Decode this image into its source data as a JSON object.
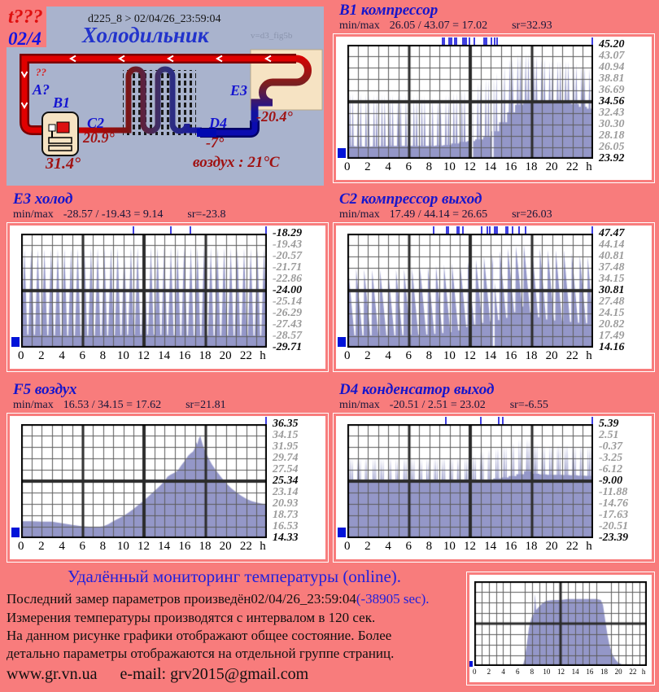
{
  "page_background": "#f87c7c",
  "colors": {
    "panel": "#a9b3cd",
    "chart_fill": "#9497c8",
    "event_tick": "#4040e0",
    "series_marker": "#0013d9",
    "pipe_hot": "#dd0000",
    "pipe_cold": "#1111aa",
    "unit_box": "#f6e3c3"
  },
  "diagram": {
    "corner_note": "t???",
    "page_note": "02/4",
    "header": "d225_8  >  02/04/26_23:59:04",
    "title": "Холодильник",
    "version": "v=d3_fig5b",
    "q1": "??",
    "q2": "A?",
    "b1": "B1",
    "b1_temp": "31.4°",
    "c2": "C2",
    "c2_temp": "20.9°",
    "d4": "D4",
    "d4_temp": "-7°",
    "e3": "E3",
    "e3_temp": "-20.4°",
    "air": "воздух : 21°C"
  },
  "chart_data": [
    {
      "id": "b1-compressor",
      "type": "area",
      "title": "B1 компрессор",
      "minmax_label": "min/max",
      "minmax": "26.05 / 43.07 = 17.02",
      "sr": "sr=32.93",
      "ymin": 23.92,
      "ymax": 45.2,
      "y_ticks": [
        "45.20",
        "43.07",
        "40.94",
        "38.81",
        "36.69",
        "34.56",
        "32.43",
        "30.30",
        "28.18",
        "26.05",
        "23.92"
      ],
      "y_bold": [
        0,
        5,
        10
      ],
      "x_ticks": [
        "0",
        "2",
        "4",
        "6",
        "8",
        "10",
        "12",
        "14",
        "16",
        "18",
        "20",
        "22"
      ],
      "x_unit": "h",
      "waveform": {
        "kind": "spikes",
        "period": 0.78,
        "spikes": [
          [
            -0.17,
            0.12
          ],
          [
            0.17,
            0.12
          ]
        ]
      },
      "envelope": [
        [
          0,
          26.3,
          36.2
        ],
        [
          2,
          26.2,
          36.0
        ],
        [
          4,
          26.3,
          35.8
        ],
        [
          6,
          26.3,
          35.9
        ],
        [
          8,
          26.3,
          35.5
        ],
        [
          9,
          26.4,
          35.2
        ],
        [
          10,
          26.5,
          36.0
        ],
        [
          11,
          27.0,
          36.6
        ],
        [
          12,
          27.2,
          37.4
        ],
        [
          13,
          27.6,
          38.2
        ],
        [
          14,
          28.2,
          39.2
        ],
        [
          15,
          30.2,
          41.0
        ],
        [
          16,
          32.6,
          42.6
        ],
        [
          17,
          34.4,
          43.9
        ],
        [
          18,
          34.6,
          43.4
        ],
        [
          19,
          34.5,
          42.6
        ],
        [
          20,
          34.4,
          42.0
        ],
        [
          21,
          34.4,
          42.3
        ],
        [
          22,
          34.3,
          41.8
        ],
        [
          23,
          33.6,
          41.3
        ],
        [
          24,
          33.2,
          40.8
        ]
      ],
      "events": [
        9.3,
        9.45,
        9.9,
        10.05,
        10.2,
        10.5,
        10.65,
        11.3,
        11.45,
        11.6,
        11.95,
        12.4,
        14.05,
        14.35,
        14.65,
        23.95
      ],
      "events_wide": [
        13.4
      ],
      "gaps": [
        12.2,
        14.2
      ]
    },
    {
      "id": "e3-cold",
      "type": "area",
      "title": "E3 холод",
      "minmax_label": "min/max",
      "minmax": "-28.57 / -19.43 = 9.14",
      "sr": "sr=-23.8",
      "ymin": -29.71,
      "ymax": -18.29,
      "y_ticks": [
        "-18.29",
        "-19.43",
        "-20.57",
        "-21.71",
        "-22.86",
        "-24.00",
        "-25.14",
        "-26.29",
        "-27.43",
        "-28.57",
        "-29.71"
      ],
      "y_bold": [
        0,
        5,
        10
      ],
      "x_ticks": [
        "0",
        "2",
        "4",
        "6",
        "8",
        "10",
        "12",
        "14",
        "16",
        "18",
        "20",
        "22"
      ],
      "x_unit": "h",
      "waveform": {
        "kind": "spikes",
        "period": 0.65,
        "spikes": [
          [
            0,
            0.42
          ]
        ]
      },
      "envelope": [
        [
          0,
          -28.4,
          -19.9
        ],
        [
          4,
          -28.5,
          -19.8
        ],
        [
          8,
          -28.5,
          -19.7
        ],
        [
          12,
          -28.4,
          -19.6
        ],
        [
          16,
          -28.5,
          -19.6
        ],
        [
          20,
          -28.5,
          -19.7
        ],
        [
          24,
          -28.5,
          -19.8
        ]
      ],
      "events": [
        11.0,
        14.6,
        16.5,
        23.95
      ],
      "events_wide": [],
      "gaps": []
    },
    {
      "id": "c2-compressor-out",
      "type": "area",
      "title": "C2 компрессор выход",
      "minmax_label": "min/max",
      "minmax": "17.49 / 44.14 = 26.65",
      "sr": "sr=26.03",
      "ymin": 14.16,
      "ymax": 47.47,
      "y_ticks": [
        "47.47",
        "44.14",
        "40.81",
        "37.48",
        "34.15",
        "30.81",
        "27.48",
        "24.15",
        "20.82",
        "17.49",
        "14.16"
      ],
      "y_bold": [
        0,
        5,
        10
      ],
      "x_ticks": [
        "0",
        "2",
        "4",
        "6",
        "8",
        "10",
        "12",
        "14",
        "16",
        "18",
        "20",
        "22"
      ],
      "x_unit": "h",
      "waveform": {
        "kind": "saw",
        "period": 0.78
      },
      "envelope": [
        [
          0,
          17.7,
          37.4
        ],
        [
          2,
          17.7,
          37.0
        ],
        [
          4,
          17.7,
          36.8
        ],
        [
          6,
          17.8,
          37.2
        ],
        [
          8,
          18.0,
          38.0
        ],
        [
          10,
          18.6,
          38.6
        ],
        [
          11,
          19.2,
          39.6
        ],
        [
          12,
          20.6,
          39.2
        ],
        [
          13,
          21.2,
          40.6
        ],
        [
          14,
          21.8,
          41.6
        ],
        [
          15,
          22.3,
          42.6
        ],
        [
          16,
          23.2,
          43.6
        ],
        [
          16.8,
          26.0,
          44.2
        ],
        [
          17.5,
          26.3,
          44.4
        ],
        [
          18,
          24.2,
          43.6
        ],
        [
          19,
          22.6,
          43.0
        ],
        [
          20,
          22.1,
          42.6
        ],
        [
          21,
          21.9,
          42.8
        ],
        [
          22,
          21.6,
          41.6
        ],
        [
          23,
          21.3,
          41.0
        ],
        [
          24,
          21.1,
          40.6
        ]
      ],
      "events": [
        8.4,
        9.7,
        9.85,
        10.7,
        10.85,
        11.3,
        13.1,
        13.7,
        13.9,
        15.5,
        15.65,
        16.1,
        16.8,
        17.4,
        23.95
      ],
      "events_wide": [
        14.5
      ],
      "gaps": [
        14.3
      ]
    },
    {
      "id": "f5-air",
      "type": "area",
      "title": "F5 воздух",
      "minmax_label": "min/max",
      "minmax": "16.53 / 34.15 = 17.62",
      "sr": "sr=21.81",
      "ymin": 14.33,
      "ymax": 36.35,
      "y_ticks": [
        "36.35",
        "34.15",
        "31.95",
        "29.74",
        "27.54",
        "25.34",
        "23.14",
        "20.93",
        "18.73",
        "16.53",
        "14.33"
      ],
      "y_bold": [
        0,
        5,
        10
      ],
      "x_ticks": [
        "0",
        "2",
        "4",
        "6",
        "8",
        "10",
        "12",
        "14",
        "16",
        "18",
        "20",
        "22"
      ],
      "x_unit": "h",
      "waveform": {
        "kind": "smooth"
      },
      "samples": [
        [
          0,
          17.6
        ],
        [
          1,
          17.6
        ],
        [
          2,
          17.5
        ],
        [
          3,
          17.5
        ],
        [
          4,
          17.2
        ],
        [
          5,
          16.9
        ],
        [
          6,
          16.6
        ],
        [
          7,
          16.5
        ],
        [
          7.5,
          16.5
        ],
        [
          8,
          16.6
        ],
        [
          8.5,
          17.0
        ],
        [
          9,
          17.6
        ],
        [
          9.5,
          18.1
        ],
        [
          10,
          18.6
        ],
        [
          10.5,
          19.3
        ],
        [
          11,
          20.0
        ],
        [
          11.5,
          20.8
        ],
        [
          12,
          21.6
        ],
        [
          12.5,
          22.5
        ],
        [
          13,
          23.4
        ],
        [
          13.5,
          24.3
        ],
        [
          14,
          25.3
        ],
        [
          14.3,
          26.2
        ],
        [
          14.6,
          26.6
        ],
        [
          15,
          27.0
        ],
        [
          15.3,
          27.4
        ],
        [
          15.6,
          28.3
        ],
        [
          16,
          29.3
        ],
        [
          16.3,
          30.2
        ],
        [
          16.5,
          30.6
        ],
        [
          16.8,
          31.1
        ],
        [
          17,
          31.9
        ],
        [
          17.1,
          32.9
        ],
        [
          17.2,
          32.4
        ],
        [
          17.35,
          33.5
        ],
        [
          17.5,
          34.1
        ],
        [
          17.6,
          33.3
        ],
        [
          17.8,
          32.0
        ],
        [
          18,
          31.0
        ],
        [
          18.3,
          29.8
        ],
        [
          18.6,
          28.7
        ],
        [
          19,
          27.5
        ],
        [
          19.5,
          26.2
        ],
        [
          20,
          25.0
        ],
        [
          20.5,
          24.0
        ],
        [
          21,
          23.2
        ],
        [
          21.5,
          22.5
        ],
        [
          22,
          21.9
        ],
        [
          22.5,
          21.5
        ],
        [
          23,
          21.2
        ],
        [
          23.5,
          21.0
        ],
        [
          24,
          20.9
        ]
      ],
      "events": [
        23.95
      ],
      "events_wide": [],
      "gaps": []
    },
    {
      "id": "d4-condenser-out",
      "type": "area",
      "title": "D4 конденсатор выход",
      "minmax_label": "min/max",
      "minmax": "-20.51 / 2.51 = 23.02",
      "sr": "sr=-6.55",
      "ymin": -23.39,
      "ymax": 5.39,
      "y_ticks": [
        "5.39",
        "2.51",
        "-0.37",
        "-3.25",
        "-6.12",
        "-9.00",
        "-11.88",
        "-14.76",
        "-17.63",
        "-20.51",
        "-23.39"
      ],
      "y_bold": [
        0,
        5,
        10
      ],
      "x_ticks": [
        "0",
        "2",
        "4",
        "6",
        "8",
        "10",
        "12",
        "14",
        "16",
        "18",
        "20",
        "22"
      ],
      "x_unit": "h",
      "waveform": {
        "kind": "spikes",
        "period": 0.75,
        "spikes": [
          [
            -0.16,
            0.07
          ],
          [
            0.02,
            0.07
          ],
          [
            0.2,
            0.06
          ]
        ]
      },
      "envelope": [
        [
          0,
          -9.4,
          -3.2
        ],
        [
          2,
          -9.4,
          -3.0
        ],
        [
          4,
          -9.4,
          -3.3
        ],
        [
          6,
          -9.4,
          -3.1
        ],
        [
          8,
          -9.4,
          -3.2
        ],
        [
          10,
          -9.3,
          -3.0
        ],
        [
          12,
          -9.2,
          -2.8
        ],
        [
          13,
          -8.9,
          -1.6
        ],
        [
          14,
          -8.6,
          -0.9
        ],
        [
          15,
          -8.2,
          -0.4
        ],
        [
          16,
          -7.8,
          0.7
        ],
        [
          17,
          -7.2,
          1.7
        ],
        [
          17.5,
          -6.3,
          1.9
        ],
        [
          18,
          -7.1,
          0.6
        ],
        [
          19,
          -7.3,
          0.3
        ],
        [
          20,
          -7.4,
          0.2
        ],
        [
          21,
          -7.4,
          0.4
        ],
        [
          22,
          -7.5,
          0.1
        ],
        [
          23,
          -7.6,
          0.2
        ],
        [
          24,
          -7.7,
          0.0
        ]
      ],
      "events": [
        9.6,
        13.05,
        14.8,
        15.2,
        23.95
      ],
      "events_wide": [],
      "gaps": []
    },
    {
      "id": "daily-activity-mini",
      "type": "area",
      "size": "small",
      "ymin": 0,
      "ymax": 1,
      "x_ticks": [
        "0",
        "2",
        "4",
        "6",
        "8",
        "10",
        "12",
        "14",
        "16",
        "18",
        "20",
        "22"
      ],
      "x_unit": "h",
      "waveform": {
        "kind": "smooth"
      },
      "samples": [
        [
          0,
          0
        ],
        [
          6.5,
          0
        ],
        [
          6.8,
          0.02
        ],
        [
          7,
          0.08
        ],
        [
          7.3,
          0.25
        ],
        [
          7.6,
          0.45
        ],
        [
          8,
          0.58
        ],
        [
          8.3,
          0.62
        ],
        [
          8.45,
          0.85
        ],
        [
          8.6,
          0.66
        ],
        [
          9,
          0.7
        ],
        [
          9.5,
          0.74
        ],
        [
          10,
          0.77
        ],
        [
          11,
          0.78
        ],
        [
          12,
          0.78
        ],
        [
          13,
          0.79
        ],
        [
          14,
          0.79
        ],
        [
          15,
          0.79
        ],
        [
          16,
          0.79
        ],
        [
          17,
          0.79
        ],
        [
          17.6,
          0.78
        ],
        [
          17.9,
          0.72
        ],
        [
          18.2,
          0.55
        ],
        [
          18.5,
          0.38
        ],
        [
          18.8,
          0.25
        ],
        [
          19.2,
          0.14
        ],
        [
          19.6,
          0.08
        ],
        [
          20,
          0.04
        ],
        [
          20.5,
          0.02
        ],
        [
          21,
          0
        ],
        [
          24,
          0
        ]
      ],
      "events": [],
      "events_wide": [],
      "gaps": []
    }
  ],
  "footer": {
    "heading": "Удалённый мониторинг температуры (online).",
    "line1_prefix": "Последний замер параметров произведён",
    "line1_time": "02/04/26_23:59:04",
    "line1_delta": "(-38905 sec).",
    "line2": "Измерения температуры  производятся с интервалом в 120 сек.",
    "line3": "На данном рисунке графики отображают общее состояние. Более",
    "line4": "детально параметры отображаются на отдельной группе страниц.",
    "site": "www.gr.vn.ua",
    "email": "e-mail: grv2015@gmail.com"
  }
}
